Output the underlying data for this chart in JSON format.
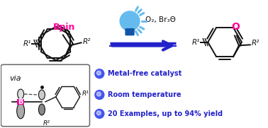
{
  "bg_color": "#ffffff",
  "arrow_color": "#2222cc",
  "text_color_black": "#111111",
  "text_color_magenta": "#ff0099",
  "text_color_blue": "#2222cc",
  "bullet_color": "#4455ee",
  "light_blue_bulb": "#66bbee",
  "dark_blue_cap": "#1155aa",
  "bullet_points": [
    "Metal-free catalyst",
    "Room temperature",
    "20 Examples, up to 94% yield"
  ],
  "reagents": "O₂, Br₃Θ",
  "bpin_label": "Bpin",
  "via_label": "via",
  "r1_label": "R¹",
  "r2_label": "R²"
}
